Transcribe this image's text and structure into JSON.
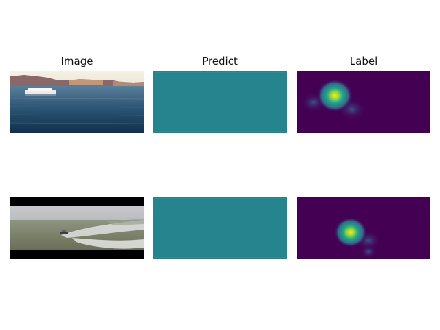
{
  "titles": {
    "image": "Image",
    "predict": "Predict",
    "label": "Label"
  },
  "colors": {
    "predict_fill": "#26838e",
    "label_background": "#440154",
    "label_hot": "#fde725",
    "label_mid": "#21a685"
  },
  "rows": [
    {
      "image_scene": "boat-on-lake-with-cliffs",
      "predict": "uniform",
      "label": "heatmap-peak-upper-left"
    },
    {
      "image_scene": "speedboat-wake-foggy-sea",
      "predict": "uniform",
      "label": "heatmap-peak-center"
    }
  ]
}
